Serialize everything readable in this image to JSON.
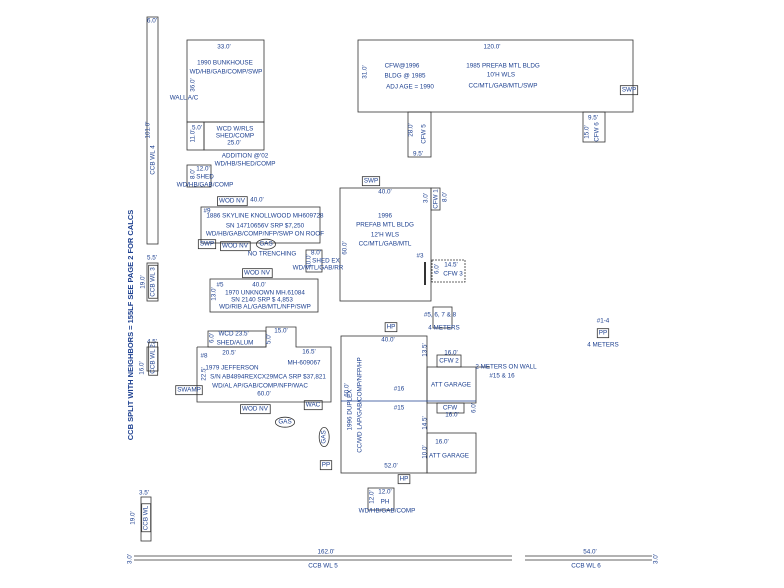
{
  "labels": [
    "6.0'",
    "101.0'",
    "CCB WL 4",
    "5.5'",
    "19.0'",
    "CCB WL 3",
    "CCB SPLIT WITH NEIGHBORS = 155LF   SEE PAGE 2 FOR CALCS",
    "4.5'",
    "16.0'",
    "CCB WL 2",
    "3.5'",
    "19.0'",
    "CCB WL",
    "33.0'",
    "1990 BUNKHOUSE",
    "WD/HB/GAB/COMP/SWP",
    "36.0'",
    "WALL A/C",
    "5.0'",
    "11.0'",
    "WCD W/RLS",
    "SHED/COMP",
    "25.0'",
    "ADDITION  @'02",
    "WD/HB/SHED/COMP",
    "12.0'",
    "8.0'",
    "SHED",
    "WD/HB/GAB/COMP",
    "WOD NV",
    "40.0'",
    "#9",
    "1886 SKYLINE KNOLLWOOD  MH609728",
    "SN 14710656V   SRP $7,250",
    "WD/HB/GAB/COMP/NFP/SWP ON ROOF",
    "SWP",
    "WOD NV",
    "GAS",
    "NO TRENCHING",
    "WOD NV",
    "8.0'",
    "10.0'",
    "SHED EX",
    "WD/MTL/GAB/RR",
    "#5",
    "40.0'",
    "13.0'",
    "1970 UNKNOWN  MH.61084",
    "SN 2140   SRP $ 4,853",
    "WD/RIB AL/GAB/MTL/NFP/SWP",
    "WCD",
    "23.5'",
    "6.0'",
    "SHED/ALUM",
    "15.0'",
    "5.0'",
    "#8",
    "20.5'",
    "16.5'",
    "MH-609067",
    "22.5'",
    "1979 JEFFERSON",
    "S/N AB4894REXCX29MCA   SRP $37,821",
    "WD/AL AP/GAB/COMP/NFP/WAC",
    "60.0'",
    "SWAMP",
    "WOD NV",
    "WAC",
    "GAS",
    "GAS",
    "PP",
    "HP",
    "12.0'",
    "12.0'",
    "PH",
    "WD/HB/GAB/COMP",
    "162.0'",
    "CCB WL 5",
    "3.0'",
    "54.0'",
    "CCB WL 6",
    "3.0'",
    "120.0'",
    "31.0'",
    "CFW@1996",
    "BLDG @ 1985",
    "ADJ AGE = 1990",
    "1985 PREFAB MTL BLDG",
    "10'H WLS",
    "CC/MTL/GAB/MTL/SWP",
    "SWP",
    "28.0'",
    "CFW 5",
    "9.5'",
    "9.5'",
    "15.0'",
    "CFW 6",
    "SWP",
    "40.0'",
    "1996",
    "PREFAB MTL BLDG",
    "12'H WLS",
    "CC/MTL/GAB/MTL",
    "60.0'",
    "#3",
    "3.0'",
    "CFW 1",
    "8.0'",
    "14.5'",
    "6.0'",
    "CFW 3",
    "#5, 6, 7 & 8",
    "4 METERS",
    "HP",
    "#1-4",
    "PP",
    "4 METERS",
    "40.0'",
    "60.0'",
    "1996 DUPLEX",
    "CC/WD LAP/GAB/COMP/NFP/HP",
    "#16",
    "#15",
    "13.5'",
    "14.5'",
    "10.0'",
    "52.0'",
    "16.0'",
    "CFW 2",
    "ATT GARAGE",
    "2 METERS ON WALL",
    "#15 & 16",
    "CFW",
    "16.0'",
    "6.0'",
    "16.0'",
    "ATT GARAGE"
  ]
}
